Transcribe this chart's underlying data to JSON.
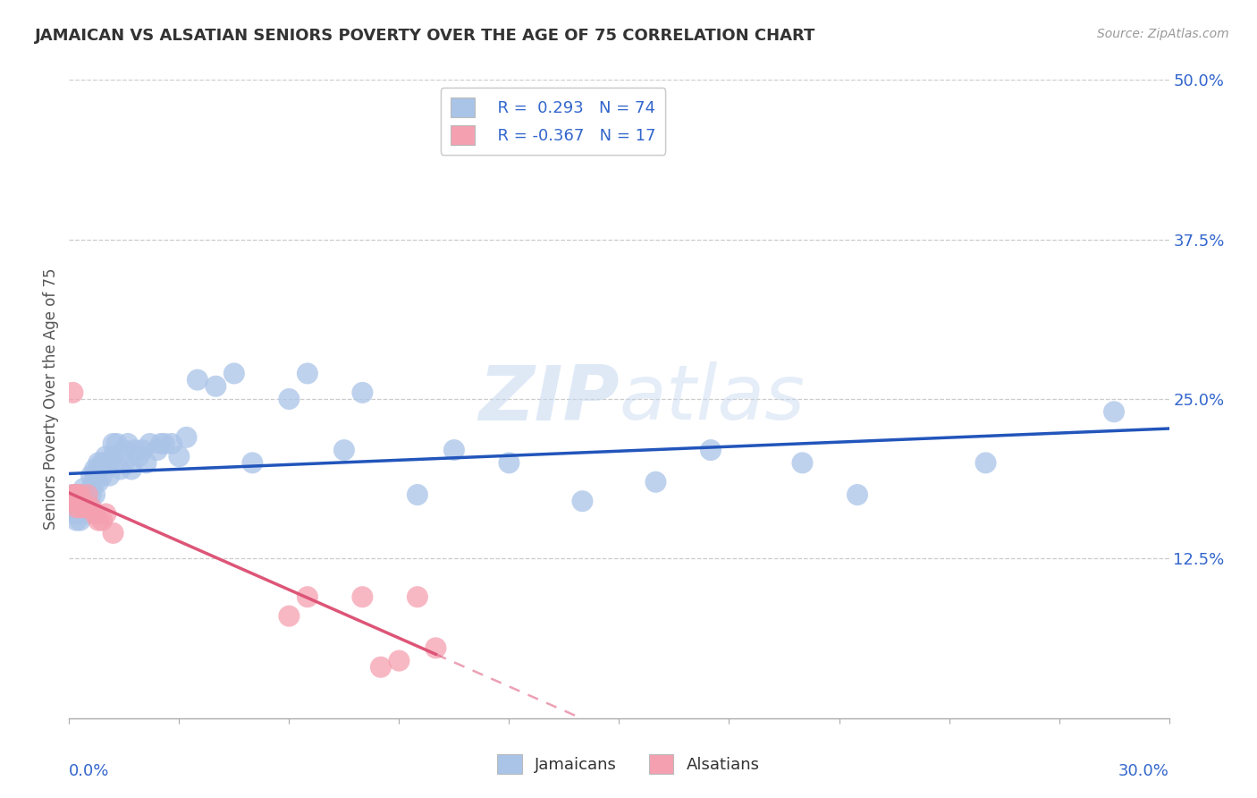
{
  "title": "JAMAICAN VS ALSATIAN SENIORS POVERTY OVER THE AGE OF 75 CORRELATION CHART",
  "source": "Source: ZipAtlas.com",
  "ylabel": "Seniors Poverty Over the Age of 75",
  "xlim": [
    0.0,
    0.3
  ],
  "ylim": [
    0.0,
    0.5
  ],
  "ytick_vals": [
    0.0,
    0.125,
    0.25,
    0.375,
    0.5
  ],
  "ytick_labels": [
    "",
    "12.5%",
    "25.0%",
    "37.5%",
    "50.0%"
  ],
  "background_color": "#ffffff",
  "grid_color": "#cccccc",
  "blue_dot_color": "#aac4e8",
  "pink_dot_color": "#f5a0b0",
  "blue_line_color": "#2255bb",
  "pink_line_color": "#dd5577",
  "text_color": "#333333",
  "axis_num_color": "#3366cc",
  "watermark_color": "#cce0f5",
  "jamaicans_x": [
    0.001,
    0.001,
    0.001,
    0.002,
    0.002,
    0.002,
    0.002,
    0.003,
    0.003,
    0.003,
    0.003,
    0.003,
    0.004,
    0.004,
    0.004,
    0.004,
    0.005,
    0.005,
    0.005,
    0.005,
    0.005,
    0.006,
    0.006,
    0.006,
    0.007,
    0.007,
    0.007,
    0.007,
    0.008,
    0.008,
    0.008,
    0.009,
    0.009,
    0.01,
    0.01,
    0.011,
    0.011,
    0.012,
    0.012,
    0.013,
    0.014,
    0.015,
    0.015,
    0.016,
    0.017,
    0.018,
    0.019,
    0.02,
    0.021,
    0.022,
    0.024,
    0.025,
    0.026,
    0.028,
    0.03,
    0.032,
    0.035,
    0.04,
    0.045,
    0.05,
    0.06,
    0.065,
    0.075,
    0.08,
    0.095,
    0.105,
    0.12,
    0.14,
    0.16,
    0.175,
    0.2,
    0.215,
    0.25,
    0.285
  ],
  "jamaicans_y": [
    0.17,
    0.175,
    0.165,
    0.175,
    0.165,
    0.155,
    0.16,
    0.175,
    0.165,
    0.155,
    0.17,
    0.165,
    0.17,
    0.18,
    0.165,
    0.175,
    0.165,
    0.175,
    0.16,
    0.175,
    0.17,
    0.175,
    0.18,
    0.19,
    0.195,
    0.175,
    0.19,
    0.185,
    0.185,
    0.195,
    0.2,
    0.19,
    0.2,
    0.2,
    0.205,
    0.2,
    0.19,
    0.205,
    0.215,
    0.215,
    0.195,
    0.21,
    0.2,
    0.215,
    0.195,
    0.21,
    0.205,
    0.21,
    0.2,
    0.215,
    0.21,
    0.215,
    0.215,
    0.215,
    0.205,
    0.22,
    0.265,
    0.26,
    0.27,
    0.2,
    0.25,
    0.27,
    0.21,
    0.255,
    0.175,
    0.21,
    0.2,
    0.17,
    0.185,
    0.21,
    0.2,
    0.175,
    0.2,
    0.24
  ],
  "alsatians_x": [
    0.001,
    0.001,
    0.001,
    0.002,
    0.002,
    0.002,
    0.003,
    0.003,
    0.004,
    0.005,
    0.005,
    0.006,
    0.007,
    0.008,
    0.009,
    0.01,
    0.012,
    0.06,
    0.065,
    0.08,
    0.085,
    0.09,
    0.095,
    0.1
  ],
  "alsatians_y": [
    0.175,
    0.255,
    0.17,
    0.175,
    0.165,
    0.175,
    0.165,
    0.175,
    0.165,
    0.165,
    0.175,
    0.165,
    0.16,
    0.155,
    0.155,
    0.16,
    0.145,
    0.08,
    0.095,
    0.095,
    0.04,
    0.045,
    0.095,
    0.055
  ]
}
